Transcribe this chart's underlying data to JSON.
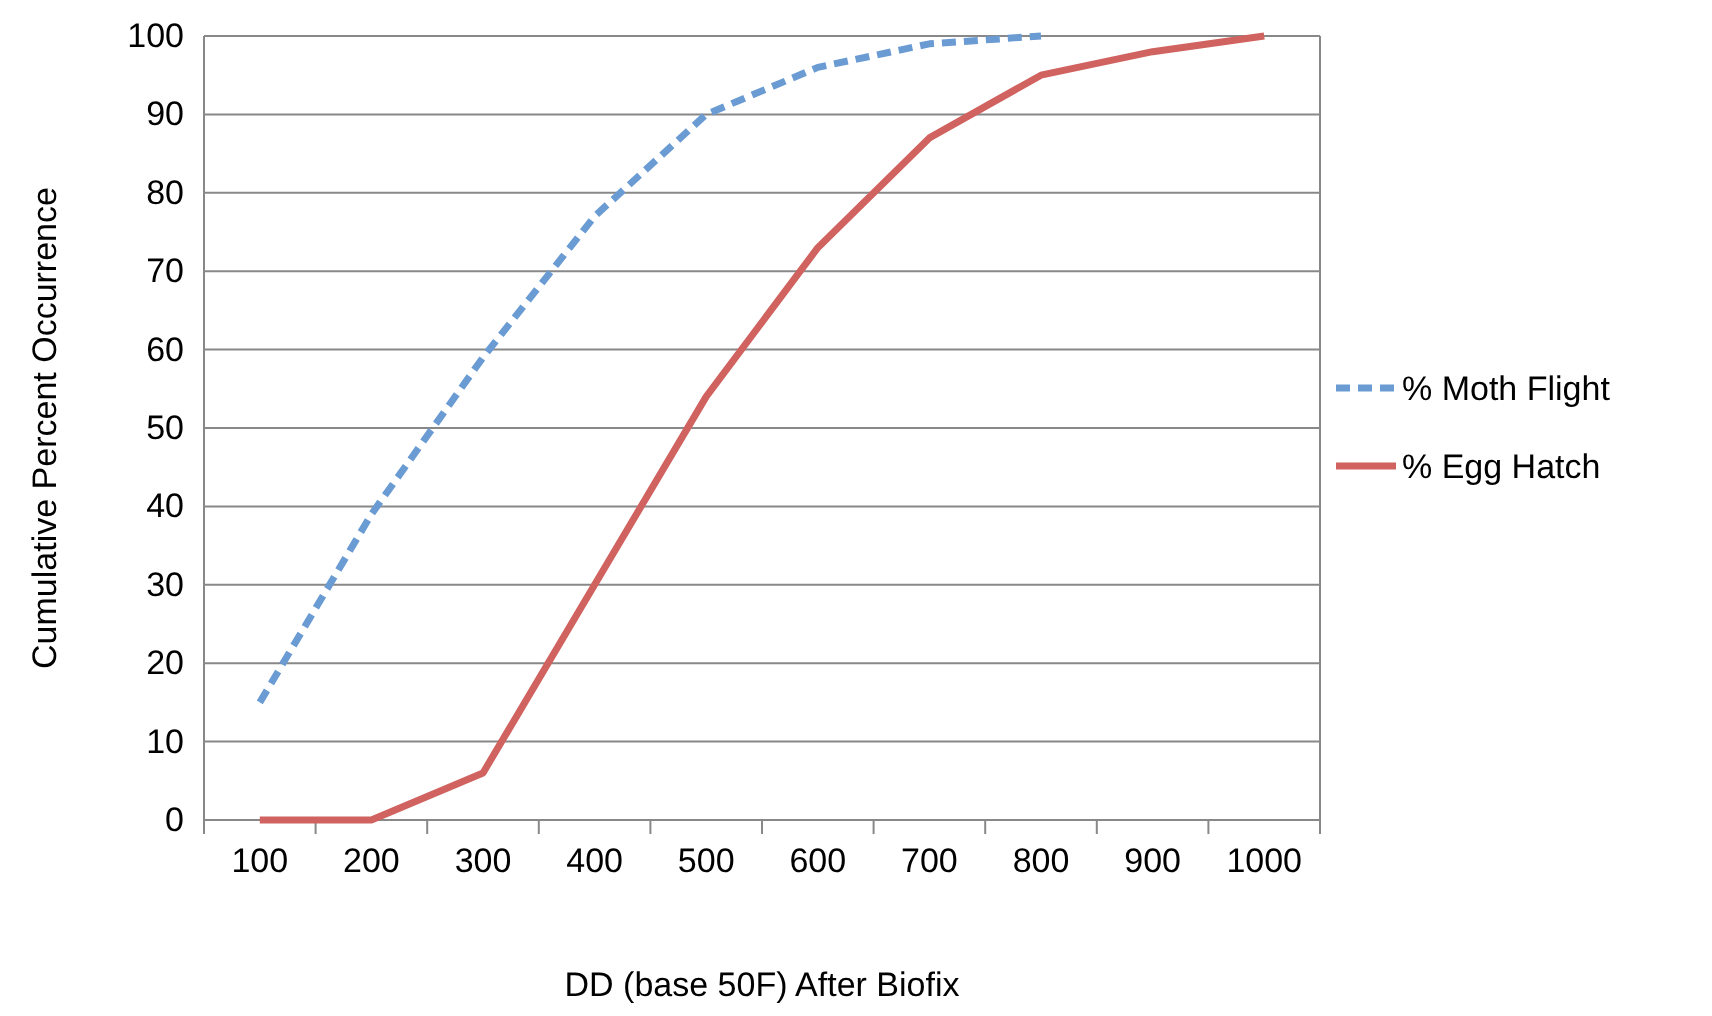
{
  "chart_data": {
    "type": "line",
    "xlabel": "DD (base 50F) After Biofix",
    "ylabel": "Cumulative Percent Occurrence",
    "categories": [
      "100",
      "200",
      "300",
      "400",
      "500",
      "600",
      "700",
      "800",
      "900",
      "1000"
    ],
    "series": [
      {
        "name": "% Moth Flight",
        "color": "#6a9bd3",
        "line_style": "dashed",
        "values": [
          15,
          39,
          59,
          77,
          90,
          96,
          99,
          100,
          null,
          null
        ]
      },
      {
        "name": "% Egg Hatch",
        "color": "#d0625f",
        "line_style": "solid",
        "values": [
          0,
          0,
          6,
          30,
          54,
          73,
          87,
          95,
          98,
          100
        ]
      }
    ],
    "ylim": [
      0,
      100
    ],
    "yticks": [
      0,
      10,
      20,
      30,
      40,
      50,
      60,
      70,
      80,
      90,
      100
    ],
    "grid": "y",
    "legend": "right",
    "marker": "none"
  }
}
